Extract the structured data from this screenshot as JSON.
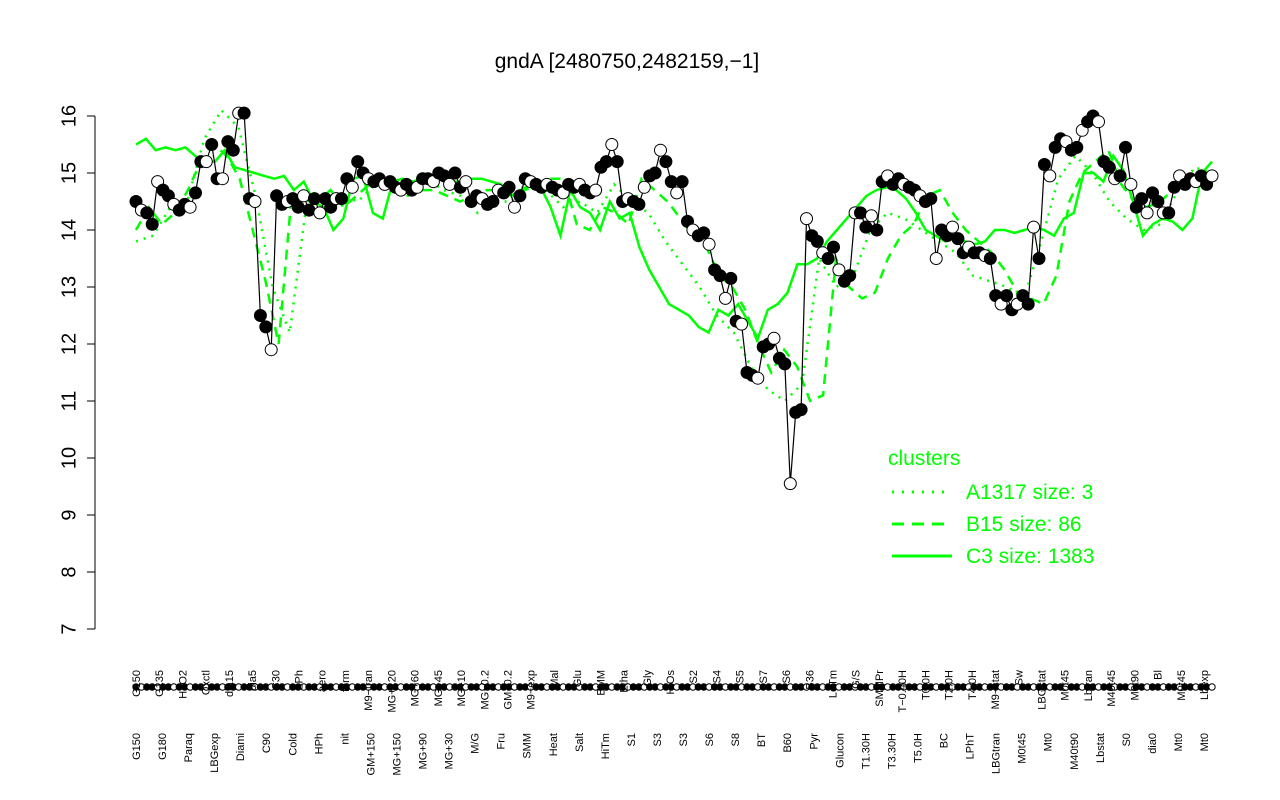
{
  "chart_data": {
    "type": "line",
    "title": "gndA [2480750,2482159,−1]",
    "xlabel": "",
    "ylabel": "",
    "ylim": [
      7,
      16.2
    ],
    "yticks": [
      "7",
      "8",
      "9",
      "10",
      "11",
      "12",
      "13",
      "14",
      "15",
      "16"
    ],
    "x_tick_labels_top": [
      "G150",
      "G135",
      "H2O2",
      "Oxctl",
      "dia15",
      "dia5",
      "C30",
      "LPh",
      "aero",
      "ferm",
      "M9−tran",
      "MG+120",
      "MG+60",
      "MG+45",
      "MG+10",
      "MG−0.2",
      "GM−0.2",
      "M9−exp",
      "Mal",
      "Glu",
      "BMM",
      "Etha",
      "Gly",
      "HiOs",
      "S2",
      "S4",
      "S5",
      "S7",
      "S6",
      "B36",
      "LoTm",
      "G/S",
      "SMMPr",
      "T−0.40H",
      "T0.0H",
      "T2.0H",
      "T4.0H",
      "M9−stat",
      "Sw",
      "LBGstat",
      "M0t45",
      "Lbtran",
      "M40t45",
      "M0t90",
      "Bl",
      "M0t45",
      "Lbexp"
    ],
    "x_tick_labels_bottom": [
      "G150",
      "G180",
      "Paraq",
      "LBGexp",
      "Diami",
      "C90",
      "Cold",
      "HPh",
      "nit",
      "GM+150",
      "MG+150",
      "MG+90",
      "MG+30",
      "M/G",
      "Fru",
      "SMM",
      "Heat",
      "Salt",
      "HiTm",
      "S1",
      "S3",
      "S3",
      "S6",
      "S8",
      "BT",
      "B60",
      "Pyr",
      "Glucon",
      "T1.30H",
      "T3.30H",
      "T5.0H",
      "BC",
      "LPhT",
      "LBGtran",
      "M0t45",
      "Mt0",
      "M40t90",
      "Lbstat",
      "S0",
      "dia0",
      "Mt0",
      "Mt0"
    ],
    "legend": {
      "title": "clusters",
      "placement": "right",
      "color": "#00ff00",
      "entries": [
        {
          "label": "A1317 size: 3",
          "style": "dotted"
        },
        {
          "label": "B15 size: 86",
          "style": "dashed"
        },
        {
          "label": "C3 size: 1383",
          "style": "solid"
        }
      ]
    },
    "colors": {
      "points_filled": "#000000",
      "points_open": "#ffffff",
      "cluster_line": "#00ff00",
      "gene_line": "#000000"
    },
    "series": [
      {
        "name": "gndA",
        "values": [
          14.5,
          14.35,
          14.3,
          14.1,
          14.85,
          14.7,
          14.6,
          14.45,
          14.35,
          14.45,
          14.4,
          14.65,
          15.2,
          15.2,
          15.5,
          14.9,
          14.9,
          15.55,
          15.4,
          16.05,
          16.05,
          14.55,
          14.5,
          12.5,
          12.3,
          11.9,
          14.6,
          14.45,
          14.5,
          14.55,
          14.4,
          14.6,
          14.35,
          14.55,
          14.3,
          14.55,
          14.4,
          14.55,
          14.55,
          14.9,
          14.75,
          15.2,
          15.0,
          14.9,
          14.85,
          14.9,
          14.8,
          14.85,
          14.75,
          14.7,
          14.8,
          14.7,
          14.75,
          14.9,
          14.9,
          14.85,
          15.0,
          14.95,
          14.8,
          15.0,
          14.75,
          14.85,
          14.5,
          14.6,
          14.55,
          14.45,
          14.5,
          14.7,
          14.65,
          14.75,
          14.4,
          14.6,
          14.9,
          14.85,
          14.8,
          14.75,
          14.8,
          14.75,
          14.7,
          14.65,
          14.8,
          14.75,
          14.8,
          14.7,
          14.65,
          14.7,
          15.1,
          15.2,
          15.5,
          15.2,
          14.5,
          14.55,
          14.5,
          14.45,
          14.75,
          14.95,
          15.0,
          15.4,
          15.2,
          14.85,
          14.65,
          14.85,
          14.15,
          14.0,
          13.9,
          13.95,
          13.75,
          13.3,
          13.2,
          12.8,
          13.15,
          12.4,
          12.35,
          11.5,
          11.45,
          11.4,
          11.95,
          12.0,
          12.1,
          11.75,
          11.65,
          9.55,
          10.8,
          10.85,
          14.2,
          13.9,
          13.8,
          13.6,
          13.5,
          13.7,
          13.3,
          13.1,
          13.2,
          14.3,
          14.3,
          14.05,
          14.25,
          14.0,
          14.85,
          14.95,
          14.8,
          14.9,
          14.8,
          14.75,
          14.7,
          14.6,
          14.5,
          14.55,
          13.5,
          14.0,
          13.9,
          14.05,
          13.85,
          13.6,
          13.7,
          13.6,
          13.6,
          13.55,
          13.5,
          12.85,
          12.7,
          12.85,
          12.6,
          12.7,
          12.85,
          12.7,
          14.05,
          13.5,
          15.15,
          14.95,
          15.45,
          15.6,
          15.55,
          15.4,
          15.45,
          15.75,
          15.9,
          16.0,
          15.9,
          15.2,
          15.1,
          14.9,
          14.95,
          15.45,
          14.8,
          14.4,
          14.55,
          14.3,
          14.65,
          14.5,
          14.3,
          14.3,
          14.75,
          14.95,
          14.8,
          14.9,
          14.85,
          14.95,
          14.8,
          14.95
        ]
      },
      {
        "name": "C3 size: 1383",
        "values": [
          15.5,
          15.6,
          15.4,
          15.45,
          15.4,
          15.45,
          15.3,
          15.2,
          15.2,
          15.4,
          15.1,
          15.05,
          15.0,
          14.95,
          14.9,
          14.95,
          14.7,
          14.85,
          14.5,
          14.4,
          14.0,
          14.2,
          14.9,
          14.95,
          14.3,
          14.2,
          14.85,
          14.9,
          14.85,
          14.9,
          14.95,
          14.9,
          14.85,
          14.85,
          14.9,
          14.9,
          14.85,
          14.8,
          14.6,
          14.7,
          14.8,
          14.75,
          14.4,
          13.9,
          14.7,
          14.4,
          14.3,
          14.0,
          14.5,
          14.2,
          14.3,
          13.7,
          13.3,
          13.0,
          12.7,
          12.6,
          12.5,
          12.3,
          12.2,
          12.6,
          12.5,
          12.7,
          12.4,
          12.1,
          12.6,
          12.7,
          12.9,
          13.4,
          13.4,
          13.5,
          13.8,
          14.0,
          14.2,
          14.4,
          14.6,
          14.7,
          14.75,
          14.7,
          14.55,
          14.3,
          14.0,
          13.9,
          13.8,
          13.9,
          13.8,
          13.75,
          13.8,
          14.0,
          14.0,
          13.95,
          14.0,
          14.05,
          14.0,
          13.9,
          14.2,
          14.3,
          15.0,
          15.0,
          14.85,
          15.3,
          15.05,
          14.5,
          13.9,
          14.1,
          14.2,
          14.15,
          14.0,
          14.2,
          15.0,
          15.2
        ]
      },
      {
        "name": "B15 size: 86",
        "values": [
          14.0,
          14.4,
          14.1,
          14.3,
          14.7,
          15.2,
          15.5,
          15.3,
          14.9,
          14.0,
          13.1,
          12.0,
          14.6,
          14.5,
          14.5,
          14.7,
          14.4,
          14.6,
          14.8,
          14.8,
          14.7,
          14.6,
          14.7,
          14.7,
          14.6,
          14.5,
          14.6,
          14.7,
          14.7,
          14.65,
          14.7,
          14.8,
          14.9,
          14.9,
          14.1,
          14.0,
          14.4,
          14.3,
          14.1,
          14.9,
          14.7,
          14.5,
          14.2,
          13.9,
          13.7,
          13.2,
          13.0,
          12.6,
          12.0,
          11.5,
          11.9,
          11.6,
          11.0,
          11.1,
          13.5,
          13.0,
          12.8,
          12.9,
          13.5,
          13.9,
          14.1,
          14.6,
          14.7,
          14.3,
          14.0,
          13.8,
          13.6,
          13.3,
          12.9,
          12.8,
          12.7,
          13.2,
          14.5,
          15.0,
          15.2,
          15.4,
          14.8,
          14.5,
          14.4,
          14.5,
          14.7,
          14.9,
          14.8,
          14.9
        ]
      },
      {
        "name": "A1317 size: 3",
        "values": [
          13.8,
          13.9,
          14.4,
          14.5,
          15.6,
          16.1,
          15.8,
          14.6,
          13.0,
          12.2,
          14.5,
          14.6,
          14.6,
          14.5,
          14.8,
          14.8,
          14.6,
          14.9,
          14.7,
          14.6,
          14.3,
          14.5,
          14.5,
          14.9,
          14.7,
          14.4,
          14.5,
          14.3,
          14.8,
          14.5,
          14.3,
          13.8,
          13.4,
          13.0,
          12.5,
          12.2,
          11.6,
          11.2,
          11.0,
          11.3,
          13.5,
          13.0,
          13.2,
          14.0,
          14.3,
          14.2,
          14.0,
          13.8,
          13.6,
          13.2,
          13.1,
          13.0,
          12.8,
          13.8,
          14.9,
          15.3,
          15.0,
          14.5,
          14.2,
          14.0,
          14.1,
          14.7,
          15.1,
          15.0
        ]
      }
    ]
  }
}
